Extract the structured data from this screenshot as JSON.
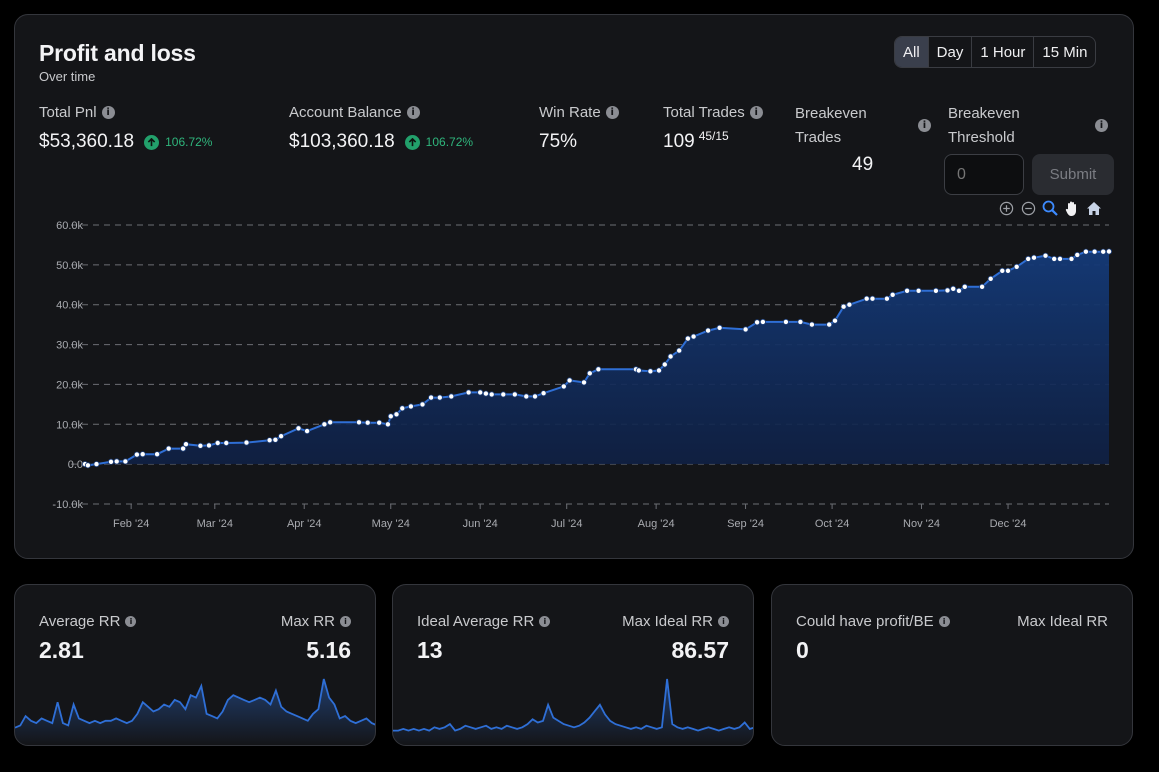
{
  "pnl_card": {
    "title": "Profit and loss",
    "subtitle": "Over time",
    "ranges": [
      "All",
      "Day",
      "1 Hour",
      "15 Min"
    ],
    "active_range": "All",
    "total_pnl": {
      "label": "Total Pnl",
      "value": "$53,360.18",
      "pct": "106.72%"
    },
    "account_balance": {
      "label": "Account Balance",
      "value": "$103,360.18",
      "pct": "106.72%"
    },
    "win_rate": {
      "label": "Win Rate",
      "value": "75%"
    },
    "total_trades": {
      "label": "Total Trades",
      "value": "109",
      "ratio": "45/15"
    },
    "breakeven_trades": {
      "label_line1": "Breakeven",
      "label_line2": "Trades",
      "value": "49"
    },
    "breakeven_threshold": {
      "label_line1": "Breakeven",
      "label_line2": "Threshold",
      "placeholder": "0",
      "submit_label": "Submit"
    },
    "tools": [
      "zoom-in-icon",
      "zoom-out-icon",
      "zoom-select-icon",
      "pan-hand-icon",
      "reset-home-icon"
    ]
  },
  "chart_data": {
    "type": "area",
    "title": "",
    "xlabel": "",
    "ylabel": "",
    "ylim": [
      -10000,
      60000
    ],
    "y_ticks": [
      "60.0k",
      "50.0k",
      "40.0k",
      "30.0k",
      "20.0k",
      "10.0k",
      "0.0",
      "-10.0k"
    ],
    "x_tick_labels": [
      "Feb '24",
      "Mar '24",
      "Apr '24",
      "May '24",
      "Jun '24",
      "Jul '24",
      "Aug '24",
      "Sep '24",
      "Oct '24",
      "Nov '24",
      "Dec '24"
    ],
    "x_range": [
      "2024-01-16",
      "2024-12-31"
    ],
    "grid": "horizontal dashed",
    "line_color": "#2f6fd6",
    "fill_color": "#102a5c",
    "points": [
      [
        "2024-01-16",
        0
      ],
      [
        "2024-01-17",
        -300
      ],
      [
        "2024-01-20",
        0
      ],
      [
        "2024-01-25",
        600
      ],
      [
        "2024-01-27",
        700
      ],
      [
        "2024-01-30",
        700
      ],
      [
        "2024-02-03",
        2400
      ],
      [
        "2024-02-05",
        2500
      ],
      [
        "2024-02-10",
        2500
      ],
      [
        "2024-02-14",
        3900
      ],
      [
        "2024-02-19",
        3900
      ],
      [
        "2024-02-20",
        5000
      ],
      [
        "2024-02-25",
        4600
      ],
      [
        "2024-02-28",
        4700
      ],
      [
        "2024-03-02",
        5300
      ],
      [
        "2024-03-05",
        5300
      ],
      [
        "2024-03-12",
        5400
      ],
      [
        "2024-03-20",
        6000
      ],
      [
        "2024-03-22",
        6100
      ],
      [
        "2024-03-24",
        7000
      ],
      [
        "2024-03-30",
        9000
      ],
      [
        "2024-04-02",
        8300
      ],
      [
        "2024-04-08",
        10000
      ],
      [
        "2024-04-10",
        10500
      ],
      [
        "2024-04-20",
        10500
      ],
      [
        "2024-04-23",
        10400
      ],
      [
        "2024-04-27",
        10400
      ],
      [
        "2024-04-30",
        10000
      ],
      [
        "2024-05-01",
        12000
      ],
      [
        "2024-05-03",
        12500
      ],
      [
        "2024-05-05",
        14000
      ],
      [
        "2024-05-08",
        14500
      ],
      [
        "2024-05-12",
        15000
      ],
      [
        "2024-05-15",
        16700
      ],
      [
        "2024-05-18",
        16700
      ],
      [
        "2024-05-22",
        17000
      ],
      [
        "2024-05-28",
        18000
      ],
      [
        "2024-06-01",
        18000
      ],
      [
        "2024-06-03",
        17700
      ],
      [
        "2024-06-05",
        17500
      ],
      [
        "2024-06-09",
        17500
      ],
      [
        "2024-06-13",
        17500
      ],
      [
        "2024-06-17",
        17000
      ],
      [
        "2024-06-20",
        17000
      ],
      [
        "2024-06-23",
        17800
      ],
      [
        "2024-06-30",
        19500
      ],
      [
        "2024-07-02",
        21000
      ],
      [
        "2024-07-07",
        20500
      ],
      [
        "2024-07-09",
        22800
      ],
      [
        "2024-07-12",
        23800
      ],
      [
        "2024-07-25",
        23800
      ],
      [
        "2024-07-26",
        23500
      ],
      [
        "2024-07-30",
        23300
      ],
      [
        "2024-08-02",
        23500
      ],
      [
        "2024-08-04",
        25000
      ],
      [
        "2024-08-06",
        27000
      ],
      [
        "2024-08-09",
        28500
      ],
      [
        "2024-08-12",
        31500
      ],
      [
        "2024-08-14",
        32000
      ],
      [
        "2024-08-19",
        33500
      ],
      [
        "2024-08-23",
        34200
      ],
      [
        "2024-09-01",
        33800
      ],
      [
        "2024-09-05",
        35600
      ],
      [
        "2024-09-07",
        35700
      ],
      [
        "2024-09-15",
        35700
      ],
      [
        "2024-09-20",
        35700
      ],
      [
        "2024-09-24",
        35000
      ],
      [
        "2024-09-30",
        35000
      ],
      [
        "2024-10-02",
        36000
      ],
      [
        "2024-10-05",
        39500
      ],
      [
        "2024-10-07",
        40000
      ],
      [
        "2024-10-13",
        41500
      ],
      [
        "2024-10-15",
        41500
      ],
      [
        "2024-10-20",
        41500
      ],
      [
        "2024-10-22",
        42500
      ],
      [
        "2024-10-27",
        43500
      ],
      [
        "2024-10-31",
        43500
      ],
      [
        "2024-11-06",
        43500
      ],
      [
        "2024-11-10",
        43600
      ],
      [
        "2024-11-12",
        44000
      ],
      [
        "2024-11-14",
        43500
      ],
      [
        "2024-11-16",
        44500
      ],
      [
        "2024-11-22",
        44500
      ],
      [
        "2024-11-25",
        46500
      ],
      [
        "2024-11-29",
        48500
      ],
      [
        "2024-12-01",
        48500
      ],
      [
        "2024-12-04",
        49500
      ],
      [
        "2024-12-08",
        51500
      ],
      [
        "2024-12-10",
        51800
      ],
      [
        "2024-12-14",
        52300
      ],
      [
        "2024-12-17",
        51500
      ],
      [
        "2024-12-19",
        51500
      ],
      [
        "2024-12-23",
        51500
      ],
      [
        "2024-12-25",
        52500
      ],
      [
        "2024-12-28",
        53300
      ],
      [
        "2024-12-31",
        53300
      ],
      [
        "2025-01-03",
        53300
      ],
      [
        "2025-01-05",
        53360.18
      ]
    ]
  },
  "rr_card": {
    "avg_label": "Average RR",
    "avg_value": "2.81",
    "max_label": "Max RR",
    "max_value": "5.16",
    "spark": [
      4,
      5,
      9,
      7,
      6,
      8,
      7,
      6,
      15,
      6,
      5,
      14,
      8,
      7,
      6,
      7,
      6,
      7,
      7,
      8,
      7,
      6,
      7,
      10,
      15,
      13,
      11,
      12,
      14,
      13,
      16,
      15,
      12,
      18,
      17,
      22,
      10,
      9,
      8,
      11,
      16,
      18,
      17,
      16,
      15,
      16,
      17,
      16,
      14,
      20,
      13,
      11,
      10,
      9,
      8,
      7,
      10,
      12,
      25,
      17,
      14,
      8,
      9,
      7,
      6,
      7,
      8,
      6,
      5
    ]
  },
  "ideal_card": {
    "avg_label": "Ideal Average RR",
    "avg_value": "13",
    "max_label": "Max Ideal RR",
    "max_value": "86.57",
    "spark": [
      4,
      4,
      5,
      4,
      5,
      4,
      5,
      4,
      6,
      5,
      6,
      8,
      4,
      5,
      7,
      6,
      5,
      6,
      7,
      5,
      6,
      5,
      7,
      6,
      5,
      6,
      8,
      11,
      9,
      10,
      20,
      12,
      10,
      8,
      7,
      6,
      7,
      9,
      12,
      16,
      20,
      14,
      10,
      8,
      7,
      6,
      5,
      6,
      5,
      7,
      6,
      5,
      6,
      36,
      8,
      6,
      5,
      6,
      5,
      4,
      5,
      6,
      5,
      4,
      5,
      6,
      5,
      6,
      9,
      5,
      6
    ]
  },
  "could_card": {
    "label": "Could have profit/BE",
    "value": "0",
    "max_label": "Max Ideal RR"
  }
}
